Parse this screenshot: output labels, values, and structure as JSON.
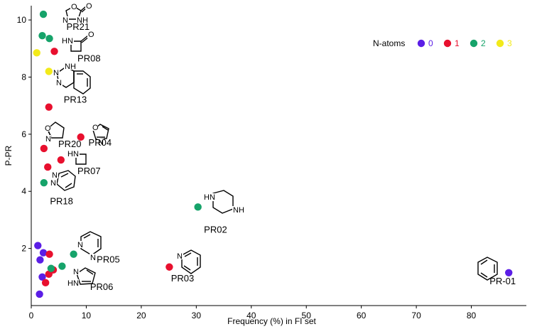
{
  "chart_data": {
    "type": "scatter",
    "xlabel": "Frequency (%) in FI set",
    "ylabel": "P-PR",
    "xlim": [
      0,
      90
    ],
    "ylim": [
      0,
      10.5
    ],
    "xticks": [
      0,
      10,
      20,
      30,
      40,
      50,
      60,
      70,
      80
    ],
    "yticks": [
      2,
      4,
      6,
      8,
      10
    ],
    "grid": false,
    "legend": {
      "title": "N-atoms",
      "placement": "top-right",
      "entries": [
        {
          "label": "0",
          "color": "#5b1ee6"
        },
        {
          "label": "1",
          "color": "#e8102e"
        },
        {
          "label": "2",
          "color": "#16a36a"
        },
        {
          "label": "3",
          "color": "#f2ea1a"
        }
      ]
    },
    "series": [
      {
        "name": "0",
        "color": "#5b1ee6",
        "points": [
          {
            "x": 86.8,
            "y": 1.15,
            "label": "PR-01"
          },
          {
            "x": 1.2,
            "y": 2.1
          },
          {
            "x": 1.6,
            "y": 1.6
          },
          {
            "x": 2.2,
            "y": 1.85
          },
          {
            "x": 2.0,
            "y": 1.0
          },
          {
            "x": 1.5,
            "y": 0.4
          }
        ]
      },
      {
        "name": "1",
        "color": "#e8102e",
        "points": [
          {
            "x": 25.1,
            "y": 1.35,
            "label": "PR03"
          },
          {
            "x": 9.0,
            "y": 5.9,
            "label": "PR04"
          },
          {
            "x": 5.4,
            "y": 5.1,
            "label": "PR07"
          },
          {
            "x": 2.3,
            "y": 5.5,
            "label": "PR20"
          },
          {
            "x": 3.2,
            "y": 6.95
          },
          {
            "x": 4.2,
            "y": 8.9,
            "label": "PR08"
          },
          {
            "x": 3.0,
            "y": 4.85
          },
          {
            "x": 3.3,
            "y": 1.8
          },
          {
            "x": 4.0,
            "y": 1.25
          },
          {
            "x": 3.2,
            "y": 1.1
          },
          {
            "x": 2.6,
            "y": 0.8
          }
        ]
      },
      {
        "name": "2",
        "color": "#16a36a",
        "points": [
          {
            "x": 30.3,
            "y": 3.45,
            "label": "PR02"
          },
          {
            "x": 7.7,
            "y": 1.8,
            "label": "PR05"
          },
          {
            "x": 5.6,
            "y": 1.38,
            "label": "PR06"
          },
          {
            "x": 2.3,
            "y": 4.3,
            "label": "PR18"
          },
          {
            "x": 2.2,
            "y": 10.2,
            "label": "PR21"
          },
          {
            "x": 2.0,
            "y": 9.45
          },
          {
            "x": 3.3,
            "y": 9.35
          },
          {
            "x": 3.6,
            "y": 1.3
          }
        ]
      },
      {
        "name": "3",
        "color": "#f2ea1a",
        "points": [
          {
            "x": 1.0,
            "y": 8.85
          },
          {
            "x": 3.2,
            "y": 8.2,
            "label": "PR13"
          }
        ]
      }
    ],
    "annotations": [
      {
        "text": "PR21",
        "x": 8.5,
        "y": 9.65
      },
      {
        "text": "PR08",
        "x": 10.5,
        "y": 8.55
      },
      {
        "text": "PR13",
        "x": 8.0,
        "y": 7.1
      },
      {
        "text": "PR20",
        "x": 7.0,
        "y": 5.55
      },
      {
        "text": "PR04",
        "x": 12.5,
        "y": 5.6
      },
      {
        "text": "PR07",
        "x": 10.5,
        "y": 4.6
      },
      {
        "text": "PR18",
        "x": 5.5,
        "y": 3.55
      },
      {
        "text": "PR02",
        "x": 33.5,
        "y": 2.55
      },
      {
        "text": "PR05",
        "x": 14.0,
        "y": 1.5
      },
      {
        "text": "PR03",
        "x": 27.5,
        "y": 0.85
      },
      {
        "text": "PR06",
        "x": 12.8,
        "y": 0.55
      },
      {
        "text": "PR-01",
        "x": 85.7,
        "y": 0.75
      }
    ]
  }
}
